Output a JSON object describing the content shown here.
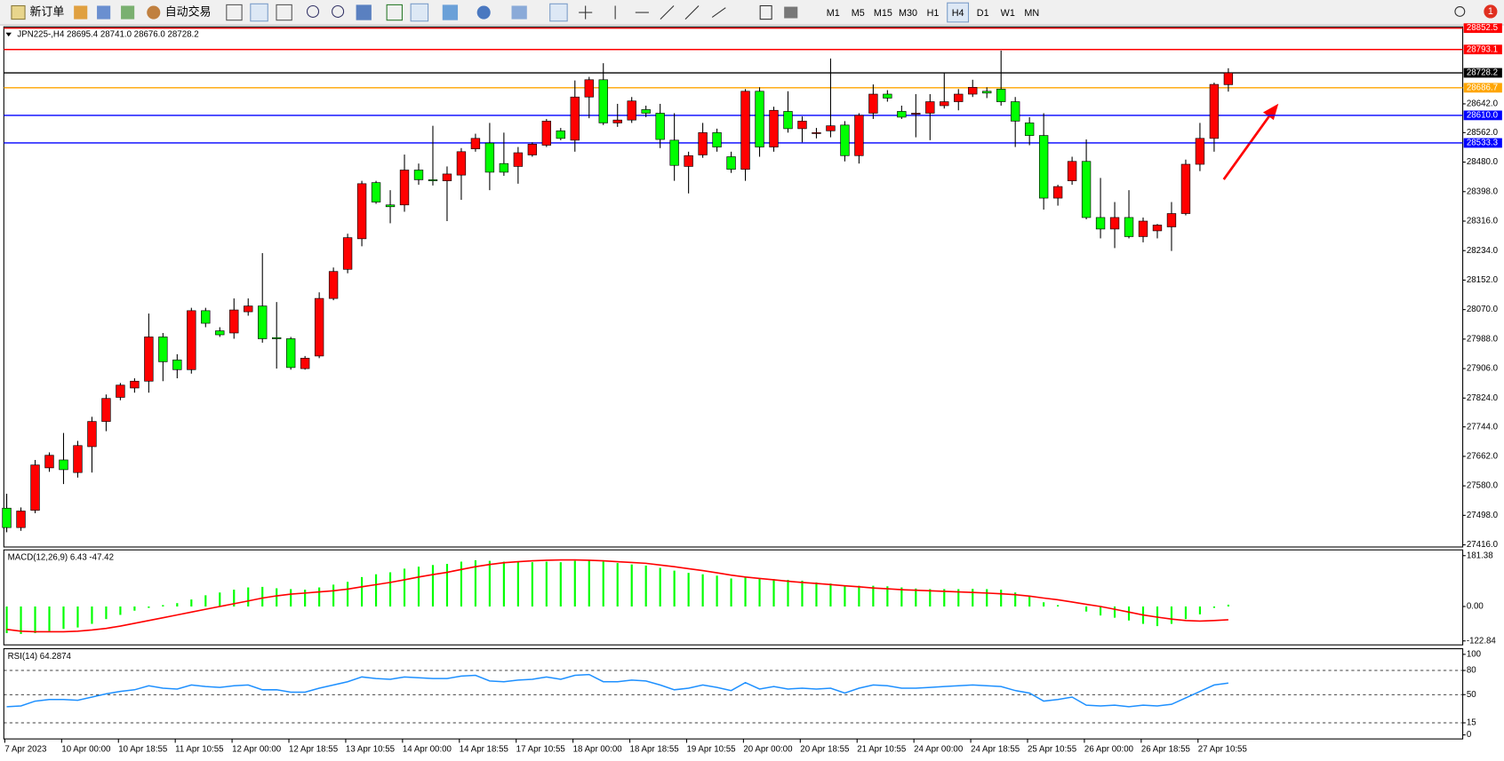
{
  "toolbar": {
    "buttons": [
      "新订单",
      "自动交易"
    ],
    "timeframes": [
      "M1",
      "M5",
      "M15",
      "M30",
      "H1",
      "H4",
      "D1",
      "W1",
      "MN"
    ],
    "active_timeframe": "H4",
    "alerts": "1"
  },
  "chart_data": [
    {
      "type": "candlestick",
      "title": "JPN225-,H4 28695.4 28741.0 28676.0 28728.2",
      "categories": [
        "7 Apr 2023",
        null,
        null,
        null,
        "10 Apr 00:00",
        null,
        null,
        null,
        "10 Apr 18:55",
        null,
        null,
        null,
        "11 Apr 10:55",
        null,
        null,
        null,
        "12 Apr 00:00",
        null,
        null,
        null,
        "12 Apr 18:55",
        null,
        null,
        null,
        "13 Apr 10:55",
        null,
        null,
        null,
        "14 Apr 00:00",
        null,
        null,
        null,
        "14 Apr 18:55",
        null,
        null,
        null,
        "17 Apr 10:55",
        null,
        null,
        null,
        "18 Apr 00:00",
        null,
        null,
        null,
        "18 Apr 18:55",
        null,
        null,
        null,
        "19 Apr 10:55",
        null,
        null,
        null,
        "20 Apr 00:00",
        null,
        null,
        null,
        "20 Apr 18:55",
        null,
        null,
        null,
        "21 Apr 10:55",
        null,
        null,
        null,
        "24 Apr 00:00",
        null,
        null,
        null,
        "24 Apr 18:55",
        null,
        null,
        null,
        "25 Apr 10:55",
        null,
        null,
        null,
        "26 Apr 00:00",
        null,
        null,
        null,
        "26 Apr 18:55",
        null,
        null,
        null,
        "27 Apr 10:55",
        null,
        null
      ],
      "open": [
        27518,
        27464,
        27512,
        27630,
        27652,
        27617,
        27689,
        27759,
        27826,
        27852,
        27871,
        27994,
        27930,
        27903,
        28067,
        28011,
        28005,
        28064,
        28080,
        27992,
        27989,
        27906,
        27941,
        28101,
        28182,
        28267,
        28423,
        28361,
        28361,
        28458,
        28431,
        28428,
        28444,
        28517,
        28533,
        28476,
        28468,
        28500,
        28527,
        28567,
        28541,
        28661,
        28709,
        28589,
        28597,
        28626,
        28616,
        28541,
        28468,
        28500,
        28562,
        28495,
        28460,
        28677,
        28522,
        28621,
        28573,
        28562,
        28567,
        28583,
        28498,
        28616,
        28669,
        28621,
        28616,
        28616,
        28637,
        28648,
        28669,
        28677,
        28683,
        28648,
        28589,
        28554,
        28380,
        28428,
        28482,
        28326,
        28294,
        28326,
        28273,
        28289,
        28300,
        28337,
        28474,
        28546,
        28695.4
      ],
      "high": [
        27558,
        27520,
        27652,
        27673,
        27727,
        27705,
        27772,
        27834,
        27866,
        27879,
        28059,
        28005,
        27946,
        28075,
        28075,
        28021,
        28101,
        28101,
        28227,
        28091,
        27994,
        27941,
        28118,
        28187,
        28281,
        28428,
        28428,
        28402,
        28501,
        28476,
        28581,
        28468,
        28519,
        28559,
        28589,
        28562,
        28522,
        28535,
        28600,
        28575,
        28707,
        28717,
        28755,
        28642,
        28661,
        28637,
        28642,
        28616,
        28509,
        28589,
        28573,
        28509,
        28683,
        28688,
        28634,
        28677,
        28607,
        28575,
        28768,
        28594,
        28616,
        28696,
        28680,
        28637,
        28669,
        28669,
        28728,
        28683,
        28709,
        28688,
        28790,
        28661,
        28605,
        28616,
        28417,
        28495,
        28543,
        28436,
        28369,
        28402,
        28326,
        28308,
        28369,
        28487,
        28589,
        28701,
        28741.0
      ],
      "low": [
        27451,
        27455,
        27504,
        27619,
        27585,
        27603,
        27617,
        27732,
        27818,
        27839,
        27839,
        27871,
        27879,
        27892,
        28021,
        27994,
        27989,
        28053,
        27978,
        27906,
        27903,
        27903,
        27935,
        28096,
        28171,
        28246,
        28364,
        28310,
        28342,
        28417,
        28415,
        28316,
        28375,
        28509,
        28402,
        28442,
        28420,
        28495,
        28522,
        28541,
        28509,
        28602,
        28583,
        28578,
        28589,
        28605,
        28519,
        28428,
        28393,
        28492,
        28509,
        28450,
        28428,
        28495,
        28509,
        28562,
        28535,
        28546,
        28549,
        28482,
        28476,
        28600,
        28648,
        28600,
        28549,
        28541,
        28629,
        28624,
        28661,
        28658,
        28637,
        28522,
        28527,
        28348,
        28359,
        28417,
        28321,
        28268,
        28241,
        28268,
        28257,
        28268,
        28233,
        28332,
        28455,
        28509,
        28676.0
      ],
      "close": [
        27464,
        27510,
        27638,
        27665,
        27625,
        27692,
        27759,
        27823,
        27860,
        27871,
        27994,
        27925,
        27903,
        28067,
        28032,
        28000,
        28069,
        28080,
        27989,
        27989,
        27909,
        27935,
        28101,
        28176,
        28270,
        28420,
        28369,
        28356,
        28458,
        28431,
        28428,
        28447,
        28509,
        28546,
        28452,
        28452,
        28506,
        28530,
        28594,
        28546,
        28661,
        28709,
        28589,
        28597,
        28650,
        28616,
        28543,
        28471,
        28498,
        28562,
        28522,
        28460,
        28677,
        28522,
        28624,
        28573,
        28594,
        28562,
        28581,
        28498,
        28610,
        28669,
        28658,
        28605,
        28616,
        28648,
        28648,
        28669,
        28688,
        28672,
        28648,
        28594,
        28554,
        28380,
        28412,
        28482,
        28326,
        28294,
        28326,
        28273,
        28316,
        28305,
        28337,
        28474,
        28546,
        28696,
        28728.2
      ],
      "up_color": "#ff0000",
      "down_color": "#00ff00",
      "ylim": [
        27410,
        28856
      ],
      "yticks": [
        {
          "value": 27416,
          "label": "27416.0"
        },
        {
          "value": 27498,
          "label": "27498.0"
        },
        {
          "value": 27580,
          "label": "27580.0"
        },
        {
          "value": 27662,
          "label": "27662.0"
        },
        {
          "value": 27744,
          "label": "27744.0"
        },
        {
          "value": 27824,
          "label": "27824.0"
        },
        {
          "value": 27906,
          "label": "27906.0"
        },
        {
          "value": 27988,
          "label": "27988.0"
        },
        {
          "value": 28070,
          "label": "28070.0"
        },
        {
          "value": 28152,
          "label": "28152.0"
        },
        {
          "value": 28234,
          "label": "28234.0"
        },
        {
          "value": 28316,
          "label": "28316.0"
        },
        {
          "value": 28398,
          "label": "28398.0"
        },
        {
          "value": 28480,
          "label": "28480.0"
        },
        {
          "value": 28562,
          "label": "28562.0"
        },
        {
          "value": 28642,
          "label": "28642.0"
        }
      ],
      "hlines": [
        {
          "value": 28852.5,
          "color": "#ff0000"
        },
        {
          "value": 28793.1,
          "color": "#ff0000"
        },
        {
          "value": 28728.2,
          "color": "#000000"
        },
        {
          "value": 28686.7,
          "color": "#ffa500"
        },
        {
          "value": 28610,
          "label": "28610.0",
          "color": "#0000ff"
        },
        {
          "value": 28533.3,
          "color": "#0000ff"
        }
      ]
    },
    {
      "type": "macd",
      "title": "MACD(12,26,9) 6.43 -47.42",
      "values": [
        -95,
        -98,
        -95,
        -88,
        -80,
        -75,
        -62,
        -45,
        -30,
        -15,
        -5,
        5,
        12,
        25,
        40,
        50,
        60,
        68,
        70,
        65,
        62,
        60,
        68,
        78,
        88,
        105,
        115,
        122,
        135,
        142,
        148,
        152,
        160,
        165,
        163,
        160,
        158,
        158,
        160,
        158,
        163,
        165,
        160,
        155,
        150,
        146,
        138,
        128,
        120,
        115,
        110,
        100,
        104,
        100,
        98,
        95,
        92,
        86,
        82,
        76,
        74,
        74,
        72,
        68,
        64,
        62,
        62,
        62,
        63,
        62,
        60,
        50,
        38,
        15,
        5,
        0,
        -18,
        -32,
        -40,
        -50,
        -62,
        -70,
        -62,
        -45,
        -28,
        -5,
        6.43
      ],
      "color": "#00ff00",
      "signal": [
        -82,
        -88,
        -90,
        -90,
        -90,
        -88,
        -84,
        -78,
        -70,
        -60,
        -50,
        -40,
        -30,
        -20,
        -10,
        0,
        10,
        20,
        30,
        38,
        44,
        48,
        52,
        56,
        62,
        70,
        78,
        86,
        95,
        105,
        114,
        122,
        132,
        142,
        150,
        156,
        160,
        163,
        165,
        166,
        166,
        165,
        163,
        160,
        157,
        154,
        148,
        142,
        135,
        128,
        120,
        112,
        105,
        100,
        95,
        90,
        86,
        82,
        78,
        74,
        70,
        66,
        63,
        60,
        58,
        56,
        54,
        52,
        50,
        48,
        45,
        42,
        37,
        30,
        24,
        16,
        8,
        0,
        -10,
        -20,
        -30,
        -38,
        -45,
        -50,
        -52,
        -50,
        -47.42
      ],
      "signal_color": "#ff0000",
      "ylim": [
        -137,
        202
      ],
      "yticks": [
        181.38,
        {
          "value": 0,
          "label": "0.00"
        },
        -122.84
      ]
    },
    {
      "type": "line",
      "title": "RSI(14) 64.2874",
      "values": [
        35,
        36,
        42,
        44,
        44,
        43,
        47,
        51,
        54,
        56,
        61,
        58,
        57,
        62,
        60,
        59,
        61,
        62,
        56,
        56,
        53,
        53,
        58,
        62,
        66,
        72,
        70,
        69,
        72,
        71,
        70,
        70,
        73,
        74,
        67,
        66,
        68,
        69,
        72,
        69,
        74,
        75,
        66,
        66,
        68,
        67,
        62,
        56,
        58,
        62,
        59,
        55,
        65,
        57,
        60,
        57,
        58,
        57,
        58,
        52,
        58,
        62,
        61,
        58,
        58,
        59,
        60,
        61,
        62,
        61,
        60,
        55,
        52,
        42,
        44,
        47,
        37,
        36,
        37,
        35,
        37,
        36,
        38,
        46,
        54,
        62,
        64.2874
      ],
      "color": "#1e90ff",
      "ylim": [
        -5,
        107
      ],
      "yticks": [
        100,
        80,
        50,
        15,
        0
      ],
      "levels": [
        80,
        50,
        15
      ]
    }
  ]
}
